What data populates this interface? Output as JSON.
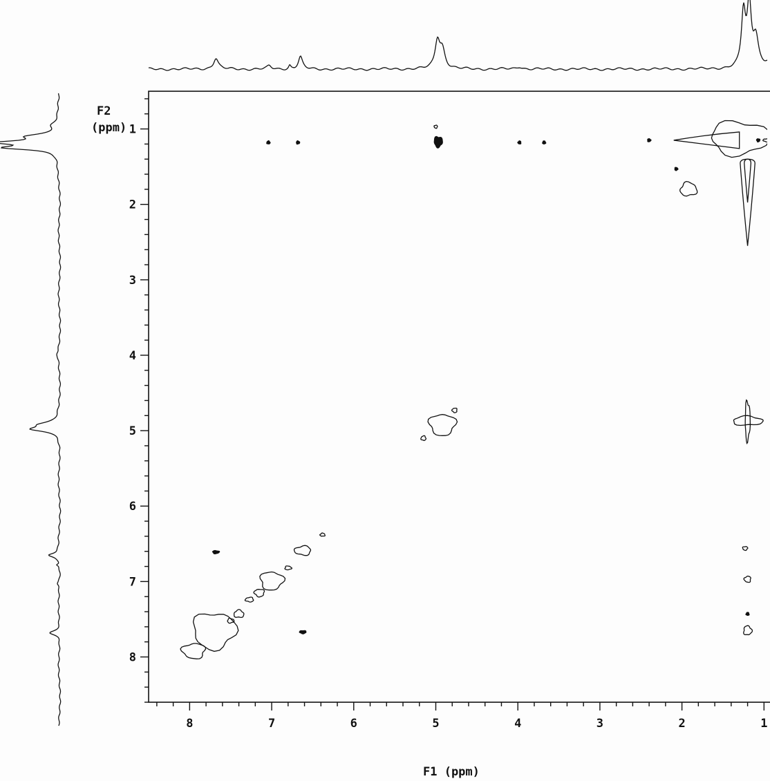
{
  "chart_data": {
    "type": "2D NMR contour plot (COSY)",
    "xlabel": "F1 (ppm)",
    "ylabel_line1": "F2",
    "ylabel_line2": "(ppm)",
    "xlim": [
      8.5,
      0.75
    ],
    "ylim": [
      0.5,
      8.6
    ],
    "x_axis_reversed": true,
    "y_axis_inverted": true,
    "x_ticks": [
      8,
      7,
      6,
      5,
      4,
      3,
      2,
      1
    ],
    "x_tick_labels": [
      "8",
      "7",
      "6",
      "5",
      "4",
      "3",
      "2",
      "1"
    ],
    "y_ticks": [
      1,
      2,
      3,
      4,
      5,
      6,
      7,
      8
    ],
    "y_tick_labels": [
      "1",
      "2",
      "3",
      "4",
      "5",
      "6",
      "7",
      "8"
    ],
    "grid": false,
    "projection_peaks": [
      {
        "ppm": 7.68,
        "height": 0.18,
        "width": 0.035
      },
      {
        "ppm": 7.03,
        "height": 0.05,
        "width": 0.03
      },
      {
        "ppm": 6.78,
        "height": 0.06,
        "width": 0.015
      },
      {
        "ppm": 6.65,
        "height": 0.2,
        "width": 0.03
      },
      {
        "ppm": 4.98,
        "height": 0.45,
        "width": 0.035
      },
      {
        "ppm": 4.92,
        "height": 0.3,
        "width": 0.04
      },
      {
        "ppm": 3.98,
        "height": 0.04,
        "width": 0.04
      },
      {
        "ppm": 1.25,
        "height": 0.9,
        "width": 0.03
      },
      {
        "ppm": 1.18,
        "height": 1.0,
        "width": 0.03
      },
      {
        "ppm": 1.1,
        "height": 0.5,
        "width": 0.04
      },
      {
        "ppm": 0.95,
        "height": 0.1,
        "width": 0.05
      }
    ],
    "cross_peaks": [
      {
        "x": 7.04,
        "y": 1.18,
        "rx": 0.02,
        "ry": 0.02,
        "filled": true
      },
      {
        "x": 6.68,
        "y": 1.18,
        "rx": 0.02,
        "ry": 0.02,
        "filled": true
      },
      {
        "x": 4.97,
        "y": 1.17,
        "rx": 0.05,
        "ry": 0.07,
        "filled": true
      },
      {
        "x": 5.0,
        "y": 0.97,
        "rx": 0.02,
        "ry": 0.02,
        "filled": false
      },
      {
        "x": 3.98,
        "y": 1.18,
        "rx": 0.01,
        "ry": 0.01,
        "filled": true
      },
      {
        "x": 3.68,
        "y": 1.18,
        "rx": 0.01,
        "ry": 0.01,
        "filled": true
      },
      {
        "x": 2.4,
        "y": 1.15,
        "rx": 0.02,
        "ry": 0.02,
        "filled": true
      },
      {
        "x": 1.07,
        "y": 1.15,
        "rx": 0.02,
        "ry": 0.02,
        "filled": true
      },
      {
        "x": 0.97,
        "y": 1.15,
        "rx": 0.04,
        "ry": 0.02,
        "filled": false
      },
      {
        "x": 0.9,
        "y": 0.68,
        "rx": 0.03,
        "ry": 0.02,
        "filled": false
      },
      {
        "x": 1.92,
        "y": 1.8,
        "rx": 0.1,
        "ry": 0.09,
        "filled": false
      },
      {
        "x": 2.07,
        "y": 1.53,
        "rx": 0.01,
        "ry": 0.01,
        "filled": true
      },
      {
        "x": 4.92,
        "y": 4.92,
        "rx": 0.16,
        "ry": 0.14,
        "filled": false
      },
      {
        "x": 4.77,
        "y": 4.73,
        "rx": 0.03,
        "ry": 0.03,
        "filled": false
      },
      {
        "x": 5.15,
        "y": 5.1,
        "rx": 0.03,
        "ry": 0.03,
        "filled": false
      },
      {
        "x": 1.2,
        "y": 4.87,
        "rx": 0.18,
        "ry": 0.06,
        "filled": false
      },
      {
        "x": 1.2,
        "y": 4.87,
        "rx": 0.03,
        "ry": 0.26,
        "filled": false
      },
      {
        "x": 1.23,
        "y": 6.56,
        "rx": 0.03,
        "ry": 0.025,
        "filled": false
      },
      {
        "x": 1.2,
        "y": 6.97,
        "rx": 0.04,
        "ry": 0.04,
        "filled": false
      },
      {
        "x": 1.2,
        "y": 7.43,
        "rx": 0.01,
        "ry": 0.01,
        "filled": true
      },
      {
        "x": 1.2,
        "y": 7.65,
        "rx": 0.05,
        "ry": 0.06,
        "filled": false
      },
      {
        "x": 7.68,
        "y": 6.61,
        "rx": 0.04,
        "ry": 0.02,
        "filled": true
      },
      {
        "x": 6.62,
        "y": 7.67,
        "rx": 0.04,
        "ry": 0.02,
        "filled": true
      },
      {
        "x": 6.62,
        "y": 6.59,
        "rx": 0.1,
        "ry": 0.06,
        "filled": false
      },
      {
        "x": 6.38,
        "y": 6.38,
        "rx": 0.03,
        "ry": 0.02,
        "filled": false
      },
      {
        "x": 6.8,
        "y": 6.82,
        "rx": 0.04,
        "ry": 0.025,
        "filled": false
      },
      {
        "x": 7.0,
        "y": 6.99,
        "rx": 0.14,
        "ry": 0.12,
        "filled": false
      },
      {
        "x": 7.15,
        "y": 7.15,
        "rx": 0.06,
        "ry": 0.05,
        "filled": false
      },
      {
        "x": 7.27,
        "y": 7.24,
        "rx": 0.05,
        "ry": 0.03,
        "filled": false
      },
      {
        "x": 7.4,
        "y": 7.43,
        "rx": 0.06,
        "ry": 0.05,
        "filled": false
      },
      {
        "x": 7.5,
        "y": 7.52,
        "rx": 0.04,
        "ry": 0.03,
        "filled": false
      },
      {
        "x": 7.7,
        "y": 7.65,
        "rx": 0.26,
        "ry": 0.24,
        "filled": false
      },
      {
        "x": 7.95,
        "y": 7.92,
        "rx": 0.14,
        "ry": 0.1,
        "filled": false
      }
    ],
    "diagonal_ridge": {
      "x": 1.2,
      "y_top": 1.4,
      "y_bottom": 2.55,
      "half_width": 0.09
    },
    "diagonal_methyl_blob": {
      "x": 1.3,
      "y": 1.12,
      "rx": 0.35,
      "ry": 0.22
    },
    "row_ridge": {
      "x_left": 2.1,
      "x_right": 1.3,
      "y": 1.15
    }
  }
}
